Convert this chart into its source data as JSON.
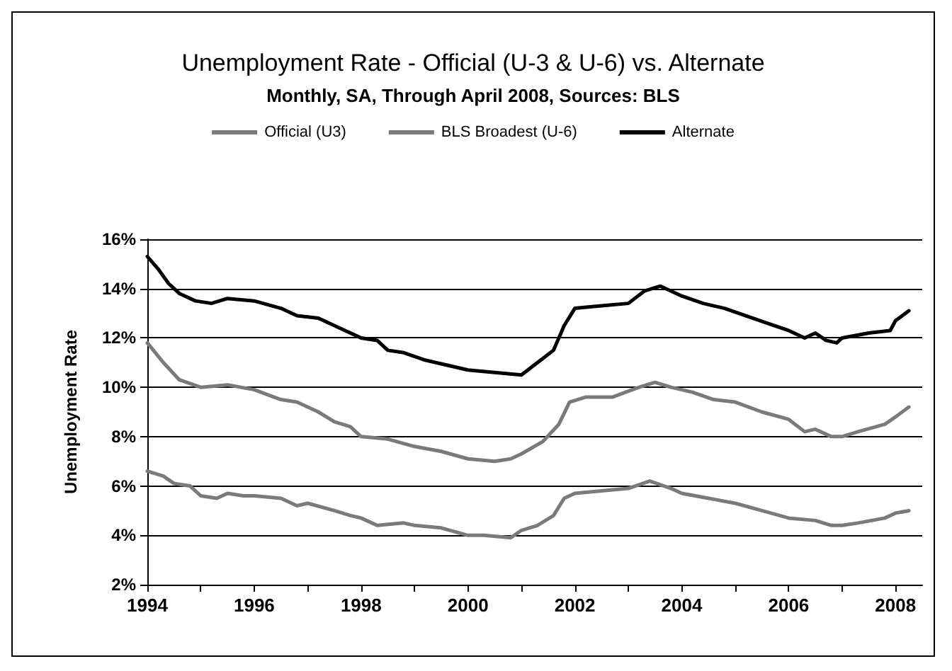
{
  "chart_data": {
    "type": "line",
    "title": "Unemployment Rate - Official (U-3 & U-6) vs. Alternate",
    "subtitle": "Monthly, SA, Through April 2008, Sources: BLS",
    "ylabel": "Unemployment Rate",
    "xlim": [
      1994,
      2008.5
    ],
    "xticks": [
      1994,
      {
        "value": 1995,
        "label": null
      },
      1996,
      {
        "value": 1997,
        "label": null
      },
      1998,
      {
        "value": 1999,
        "label": null
      },
      2000,
      {
        "value": 2001,
        "label": null
      },
      2002,
      {
        "value": 2003,
        "label": null
      },
      2004,
      {
        "value": 2005,
        "label": null
      },
      2006,
      {
        "value": 2007,
        "label": null
      },
      2008
    ],
    "ylim": [
      2,
      16
    ],
    "yticks": [
      {
        "value": 2,
        "label": "2%"
      },
      {
        "value": 4,
        "label": "4%"
      },
      {
        "value": 6,
        "label": "6%"
      },
      {
        "value": 8,
        "label": "8%"
      },
      {
        "value": 10,
        "label": "10%"
      },
      {
        "value": 12,
        "label": "12%"
      },
      {
        "value": 14,
        "label": "14%"
      },
      {
        "value": 16,
        "label": "16%"
      }
    ],
    "grid": "y",
    "legend": "top",
    "marker": "none",
    "line_style": "solid",
    "series": [
      {
        "name": "Official (U3)",
        "color": "#7a7a7a",
        "x": [
          1994.0,
          1994.3,
          1994.5,
          1994.8,
          1995.0,
          1995.3,
          1995.5,
          1995.8,
          1996.0,
          1996.5,
          1996.8,
          1997.0,
          1997.5,
          1997.8,
          1998.0,
          1998.3,
          1998.8,
          1999.0,
          1999.5,
          2000.0,
          2000.3,
          2000.8,
          2001.0,
          2001.3,
          2001.6,
          2001.8,
          2002.0,
          2002.5,
          2003.0,
          2003.4,
          2003.8,
          2004.0,
          2004.5,
          2005.0,
          2005.5,
          2006.0,
          2006.5,
          2006.8,
          2007.0,
          2007.3,
          2007.8,
          2008.0,
          2008.25
        ],
        "values": [
          6.6,
          6.4,
          6.1,
          6.0,
          5.6,
          5.5,
          5.7,
          5.6,
          5.6,
          5.5,
          5.2,
          5.3,
          5.0,
          4.8,
          4.7,
          4.4,
          4.5,
          4.4,
          4.3,
          4.0,
          4.0,
          3.9,
          4.2,
          4.4,
          4.8,
          5.5,
          5.7,
          5.8,
          5.9,
          6.2,
          5.9,
          5.7,
          5.5,
          5.3,
          5.0,
          4.7,
          4.6,
          4.4,
          4.4,
          4.5,
          4.7,
          4.9,
          5.0
        ]
      },
      {
        "name": "BLS Broadest (U-6)",
        "color": "#7a7a7a",
        "x": [
          1994.0,
          1994.3,
          1994.6,
          1995.0,
          1995.5,
          1996.0,
          1996.5,
          1996.8,
          1997.2,
          1997.5,
          1997.8,
          1998.0,
          1998.5,
          1999.0,
          1999.5,
          2000.0,
          2000.5,
          2000.8,
          2001.0,
          2001.4,
          2001.7,
          2001.9,
          2002.2,
          2002.7,
          2003.2,
          2003.5,
          2003.8,
          2004.2,
          2004.6,
          2005.0,
          2005.5,
          2006.0,
          2006.3,
          2006.5,
          2006.8,
          2007.0,
          2007.3,
          2007.8,
          2008.0,
          2008.25
        ],
        "values": [
          11.8,
          11.0,
          10.3,
          10.0,
          10.1,
          9.9,
          9.5,
          9.4,
          9.0,
          8.6,
          8.4,
          8.0,
          7.9,
          7.6,
          7.4,
          7.1,
          7.0,
          7.1,
          7.3,
          7.8,
          8.5,
          9.4,
          9.6,
          9.6,
          10.0,
          10.2,
          10.0,
          9.8,
          9.5,
          9.4,
          9.0,
          8.7,
          8.2,
          8.3,
          8.0,
          8.0,
          8.2,
          8.5,
          8.8,
          9.2
        ]
      },
      {
        "name": "Alternate",
        "color": "#000000",
        "x": [
          1994.0,
          1994.2,
          1994.4,
          1994.6,
          1994.9,
          1995.2,
          1995.5,
          1996.0,
          1996.5,
          1996.8,
          1997.2,
          1997.6,
          1998.0,
          1998.3,
          1998.5,
          1998.8,
          1999.2,
          1999.6,
          2000.0,
          2000.5,
          2001.0,
          2001.3,
          2001.6,
          2001.8,
          2002.0,
          2002.5,
          2003.0,
          2003.3,
          2003.6,
          2004.0,
          2004.4,
          2004.8,
          2005.2,
          2005.6,
          2006.0,
          2006.3,
          2006.5,
          2006.7,
          2006.9,
          2007.0,
          2007.5,
          2007.9,
          2008.0,
          2008.25
        ],
        "values": [
          15.3,
          14.8,
          14.2,
          13.8,
          13.5,
          13.4,
          13.6,
          13.5,
          13.2,
          12.9,
          12.8,
          12.4,
          12.0,
          11.9,
          11.5,
          11.4,
          11.1,
          10.9,
          10.7,
          10.6,
          10.5,
          11.0,
          11.5,
          12.5,
          13.2,
          13.3,
          13.4,
          13.9,
          14.1,
          13.7,
          13.4,
          13.2,
          12.9,
          12.6,
          12.3,
          12.0,
          12.2,
          11.9,
          11.8,
          12.0,
          12.2,
          12.3,
          12.7,
          13.1
        ]
      }
    ]
  }
}
